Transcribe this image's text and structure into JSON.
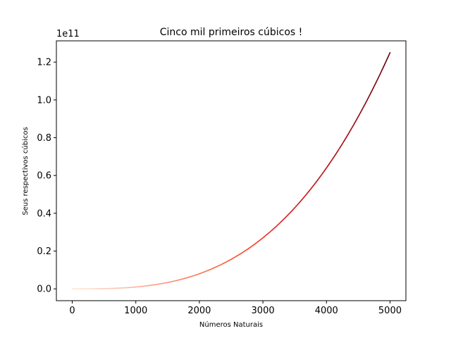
{
  "chart_data": {
    "type": "scatter",
    "title": "Cinco mil primeiros cúbicos !",
    "xlabel": "Números Naturais",
    "ylabel": "Seus respectivos cúbicos",
    "y_offset_label": "1e11",
    "y_scale": 100000000000,
    "xlim": [
      -250,
      5250
    ],
    "ylim": [
      -6250000000,
      131250000000
    ],
    "x_ticks": [
      0,
      1000,
      2000,
      3000,
      4000,
      5000
    ],
    "x_tick_labels": [
      "0",
      "1000",
      "2000",
      "3000",
      "4000",
      "5000"
    ],
    "y_ticks": [
      0,
      20000000000,
      40000000000,
      60000000000,
      80000000000,
      100000000000,
      120000000000
    ],
    "y_tick_labels": [
      "0.0",
      "0.2",
      "0.4",
      "0.6",
      "0.8",
      "1.0",
      "1.2"
    ],
    "series": [
      {
        "x_start": 1,
        "x_end": 5000,
        "formula": "y = x^3",
        "colormap": "Reds",
        "sample_x": [
          0,
          500,
          1000,
          1500,
          2000,
          2500,
          3000,
          3500,
          4000,
          4500,
          5000
        ],
        "sample_y": [
          0,
          125000000,
          1000000000,
          3375000000,
          8000000000,
          15625000000,
          27000000000,
          42875000000,
          64000000000,
          91125000000,
          125000000000
        ]
      }
    ],
    "grid": false,
    "legend": "none"
  }
}
